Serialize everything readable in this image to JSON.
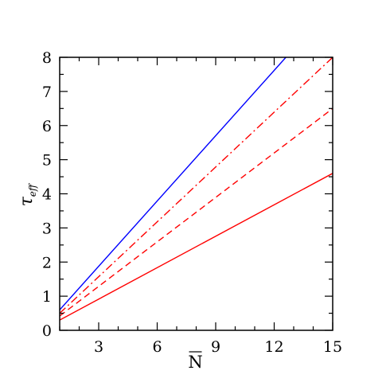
{
  "chart_data": {
    "type": "line",
    "xlabel": "N",
    "xlabel_overline": true,
    "ylabel_symbol": "τ",
    "ylabel_subscript": "eff",
    "xlim": [
      1,
      15
    ],
    "ylim": [
      0,
      8
    ],
    "x_ticks": [
      3,
      6,
      9,
      12,
      15
    ],
    "y_ticks": [
      0,
      1,
      2,
      3,
      4,
      5,
      6,
      7,
      8
    ],
    "x_minor_step": 1,
    "y_minor_step": 0.5,
    "grid": false,
    "legend": "none",
    "series": [
      {
        "x": [
          1,
          12.6
        ],
        "y": [
          0.6,
          8.0
        ],
        "color": "#0000ff",
        "style": "solid"
      },
      {
        "x": [
          1,
          15
        ],
        "y": [
          0.5,
          8.0
        ],
        "color": "#ff0000",
        "style": "dashdot"
      },
      {
        "x": [
          1,
          15
        ],
        "y": [
          0.42,
          6.5
        ],
        "color": "#ff0000",
        "style": "dashed"
      },
      {
        "x": [
          1,
          15
        ],
        "y": [
          0.3,
          4.6
        ],
        "color": "#ff0000",
        "style": "solid"
      }
    ]
  }
}
